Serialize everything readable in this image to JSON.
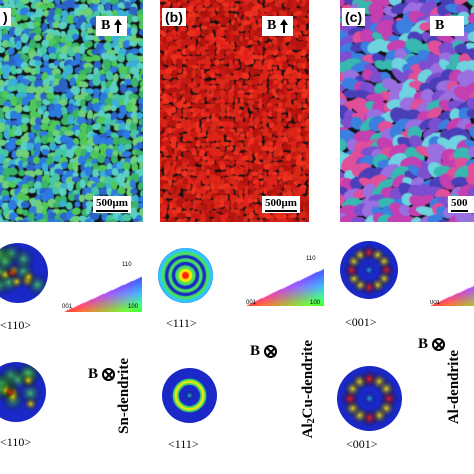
{
  "panels": [
    {
      "id": "a",
      "label": ")",
      "direction": "B",
      "scalebar": "500μm",
      "map_palette": [
        "#2d7ae0",
        "#3ab0d8",
        "#46c7a6",
        "#39b46a",
        "#4fc85a",
        "#6fd07a",
        "#2b63c9",
        "#5ad0c0"
      ]
    },
    {
      "id": "b",
      "label": "(b)",
      "direction": "B",
      "scalebar": "500μm",
      "map_palette": [
        "#e3221b",
        "#c81a14",
        "#f0301f",
        "#b5140f",
        "#d82818"
      ]
    },
    {
      "id": "c",
      "label": "(c)",
      "direction": "B",
      "scalebar": "500",
      "map_palette": [
        "#7b4fd0",
        "#3b7fe0",
        "#c43fb0",
        "#38b8b0",
        "#e04f9a",
        "#6fd2e0",
        "#4a3fb8",
        "#9a6fe0"
      ]
    }
  ],
  "pole_figures_top": [
    {
      "name": "sn-top",
      "axis": "<110>"
    },
    {
      "name": "al2cu-top",
      "axis": "<111>"
    },
    {
      "name": "al-top",
      "axis": "<001>"
    }
  ],
  "pole_figures_bottom": [
    {
      "name": "sn-bottom",
      "axis": "<110>"
    },
    {
      "name": "al2cu-bottom",
      "axis": "<111>"
    },
    {
      "name": "al-bottom",
      "axis": "<001>"
    }
  ],
  "ipf_key": {
    "corner_top": "110",
    "corner_left": "001",
    "corner_right": "100"
  },
  "bottom_direction": "B",
  "phase_labels": {
    "sn": "Sn-dendrite",
    "al2cu_prefix": "Al",
    "al2cu_sub": "2",
    "al2cu_suffix": "Cu-dendrite",
    "al": "Al-dendrite"
  },
  "colors": {
    "pole_background": "#1a28c8",
    "pole_low": "#2fc8ff",
    "pole_mid": "#48e060",
    "pole_high": "#ffe800",
    "pole_peak": "#ff2010"
  }
}
